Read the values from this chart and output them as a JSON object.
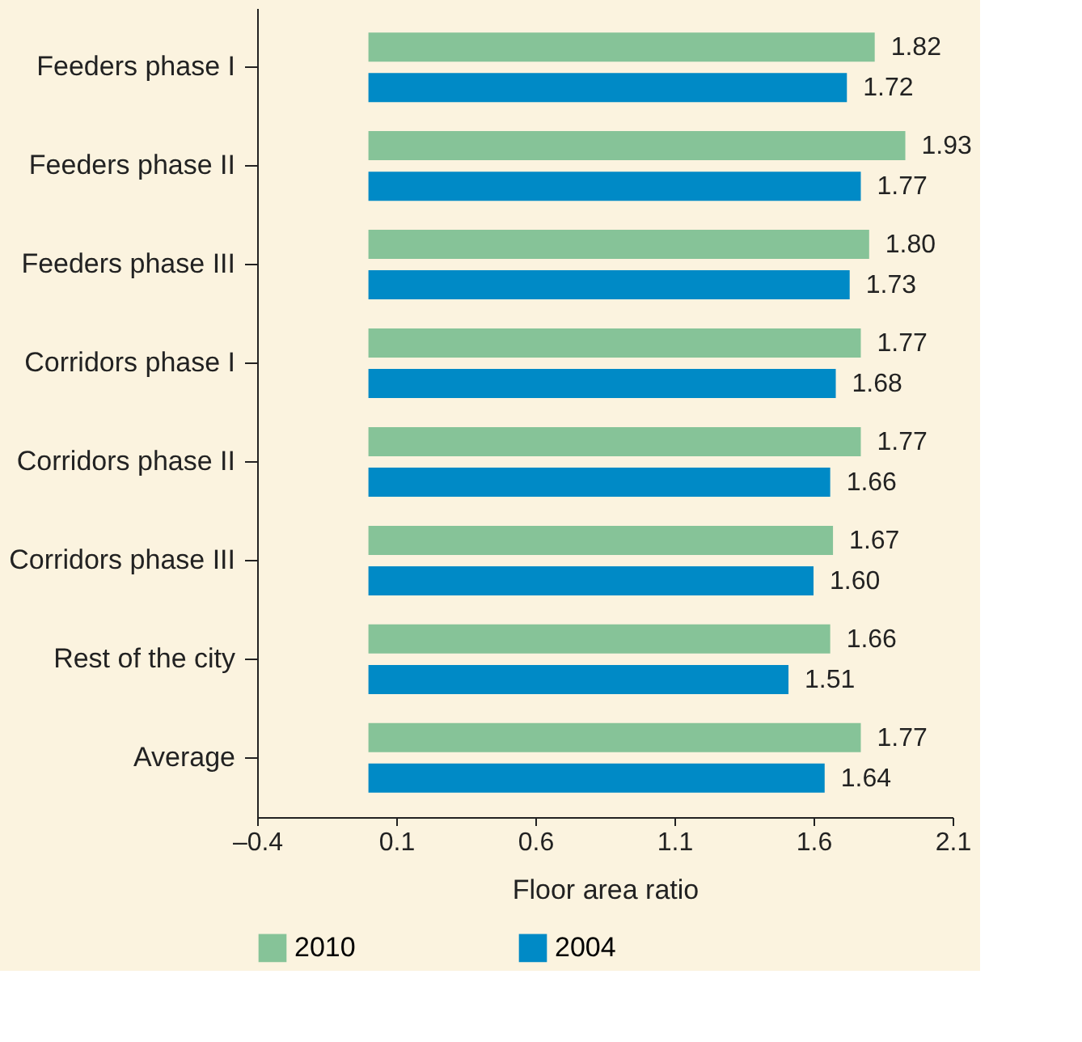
{
  "chart_data": {
    "type": "bar",
    "orientation": "horizontal",
    "xlabel": "Floor area ratio",
    "categories": [
      "Feeders phase I",
      "Feeders phase II",
      "Feeders phase III",
      "Corridors phase I",
      "Corridors phase II",
      "Corridors phase III",
      "Rest of the city",
      "Average"
    ],
    "series": [
      {
        "name": "2010",
        "color": "#86c398",
        "values": [
          1.82,
          1.93,
          1.8,
          1.77,
          1.77,
          1.67,
          1.66,
          1.77
        ],
        "value_labels": [
          "1.82",
          "1.93",
          "1.80",
          "1.77",
          "1.77",
          "1.67",
          "1.66",
          "1.77"
        ]
      },
      {
        "name": "2004",
        "color": "#008ac6",
        "values": [
          1.72,
          1.77,
          1.73,
          1.68,
          1.66,
          1.6,
          1.51,
          1.64
        ],
        "value_labels": [
          "1.72",
          "1.77",
          "1.73",
          "1.68",
          "1.66",
          "1.60",
          "1.51",
          "1.64"
        ]
      }
    ],
    "xlim": [
      -0.4,
      2.1
    ],
    "xticks": [
      {
        "value": -0.4,
        "label": "–0.4"
      },
      0.1,
      0.6,
      1.1,
      1.6,
      2.1
    ],
    "grid": false,
    "legend": "bottom"
  }
}
